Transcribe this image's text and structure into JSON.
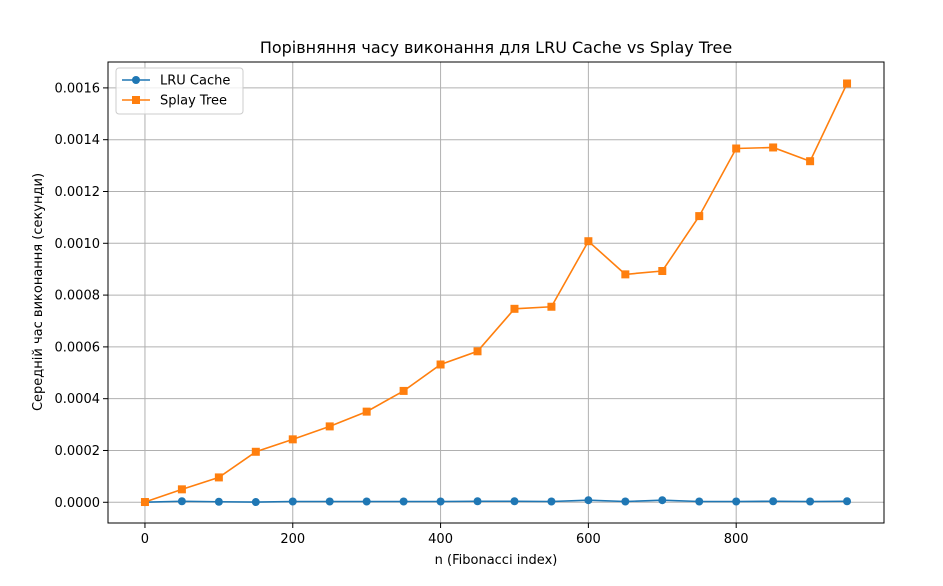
{
  "chart_data": {
    "type": "line",
    "title": "Порівняння часу виконання для LRU Cache vs Splay Tree",
    "xlabel": "n (Fibonacci index)",
    "ylabel": "Середній час виконання (секунди)",
    "x": [
      0,
      50,
      100,
      150,
      200,
      250,
      300,
      350,
      400,
      450,
      500,
      550,
      600,
      650,
      700,
      750,
      800,
      850,
      900,
      950
    ],
    "xlim": [
      -50,
      1000
    ],
    "ylim": [
      -8e-05,
      0.0017
    ],
    "xticks": [
      0,
      200,
      400,
      600,
      800
    ],
    "xtick_labels": [
      "0",
      "200",
      "400",
      "600",
      "800"
    ],
    "yticks": [
      0,
      0.0002,
      0.0004,
      0.0006,
      0.0008,
      0.001,
      0.0012,
      0.0014,
      0.0016
    ],
    "ytick_labels": [
      "0.0000",
      "0.0002",
      "0.0004",
      "0.0006",
      "0.0008",
      "0.0010",
      "0.0012",
      "0.0014",
      "0.0016"
    ],
    "grid": true,
    "legend_position": "top-left",
    "series": [
      {
        "name": "LRU Cache",
        "color": "#1f77b4",
        "marker": "circle",
        "values": [
          5e-07,
          4e-06,
          2e-06,
          1e-06,
          3e-06,
          3e-06,
          3e-06,
          3e-06,
          3e-06,
          4e-06,
          4e-06,
          3e-06,
          8e-06,
          3e-06,
          8e-06,
          3e-06,
          3e-06,
          4e-06,
          3e-06,
          4e-06
        ]
      },
      {
        "name": "Splay Tree",
        "color": "#ff7f0e",
        "marker": "square",
        "values": [
          1e-06,
          5e-05,
          9.6e-05,
          0.000195,
          0.000243,
          0.000293,
          0.00035,
          0.00043,
          0.000532,
          0.000583,
          0.000747,
          0.000755,
          0.001008,
          0.00088,
          0.000893,
          0.001105,
          0.001366,
          0.00137,
          0.001317,
          0.001617
        ]
      }
    ]
  }
}
